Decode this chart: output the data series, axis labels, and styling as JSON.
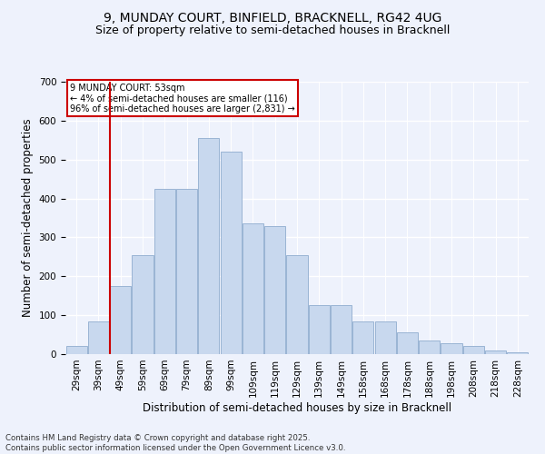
{
  "title_line1": "9, MUNDAY COURT, BINFIELD, BRACKNELL, RG42 4UG",
  "title_line2": "Size of property relative to semi-detached houses in Bracknell",
  "xlabel": "Distribution of semi-detached houses by size in Bracknell",
  "ylabel": "Number of semi-detached properties",
  "annotation_title": "9 MUNDAY COURT: 53sqm",
  "annotation_line2": "← 4% of semi-detached houses are smaller (116)",
  "annotation_line3": "96% of semi-detached houses are larger (2,831) →",
  "footer_line1": "Contains HM Land Registry data © Crown copyright and database right 2025.",
  "footer_line2": "Contains public sector information licensed under the Open Government Licence v3.0.",
  "bar_labels": [
    "29sqm",
    "39sqm",
    "49sqm",
    "59sqm",
    "69sqm",
    "79sqm",
    "89sqm",
    "99sqm",
    "109sqm",
    "119sqm",
    "129sqm",
    "139sqm",
    "149sqm",
    "158sqm",
    "168sqm",
    "178sqm",
    "188sqm",
    "198sqm",
    "208sqm",
    "218sqm",
    "228sqm"
  ],
  "bar_values": [
    22,
    83,
    175,
    255,
    425,
    425,
    555,
    520,
    335,
    330,
    255,
    125,
    125,
    83,
    83,
    57,
    35,
    28,
    22,
    10,
    5
  ],
  "bar_color": "#c8d8ee",
  "bar_edge_color": "#9ab4d4",
  "vline_color": "#cc0000",
  "annotation_box_color": "#cc0000",
  "annotation_box_fill": "#ffffff",
  "ylim": [
    0,
    700
  ],
  "yticks": [
    0,
    100,
    200,
    300,
    400,
    500,
    600,
    700
  ],
  "background_color": "#eef2fc",
  "grid_color": "#ffffff",
  "title_fontsize": 10,
  "subtitle_fontsize": 9,
  "axis_label_fontsize": 8.5,
  "tick_fontsize": 7.5,
  "footer_fontsize": 6.2
}
